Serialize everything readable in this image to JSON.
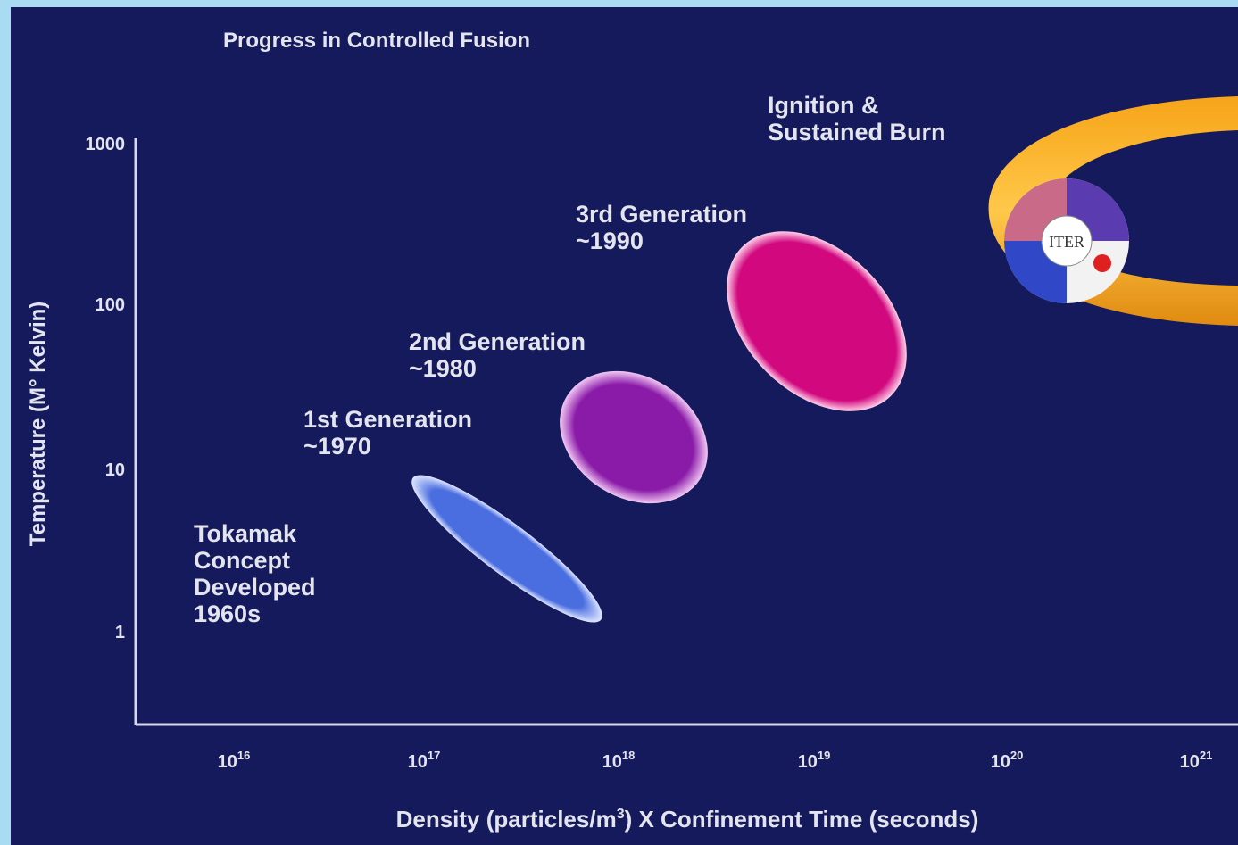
{
  "title": "Progress in Controlled Fusion",
  "y_axis": {
    "label": "Temperature (M° Kelvin)",
    "ticks": [
      "1000",
      "100",
      "10",
      "1"
    ]
  },
  "x_axis": {
    "label_parts": [
      "Density (particles/m",
      "3",
      ") X Confinement Time (seconds)"
    ],
    "ticks": [
      {
        "base": "10",
        "exp": "16"
      },
      {
        "base": "10",
        "exp": "17"
      },
      {
        "base": "10",
        "exp": "18"
      },
      {
        "base": "10",
        "exp": "19"
      },
      {
        "base": "10",
        "exp": "20"
      },
      {
        "base": "10",
        "exp": "21"
      }
    ]
  },
  "regions": [
    {
      "lines": [
        "Tokamak",
        "Concept",
        "Developed",
        "1960s"
      ]
    },
    {
      "lines": [
        "1st Generation",
        "~1970"
      ]
    },
    {
      "lines": [
        "2nd Generation",
        "~1980"
      ]
    },
    {
      "lines": [
        "3rd Generation",
        "~1990"
      ]
    },
    {
      "lines": [
        "Ignition &",
        "Sustained Burn"
      ]
    }
  ],
  "logo": "ITER"
}
